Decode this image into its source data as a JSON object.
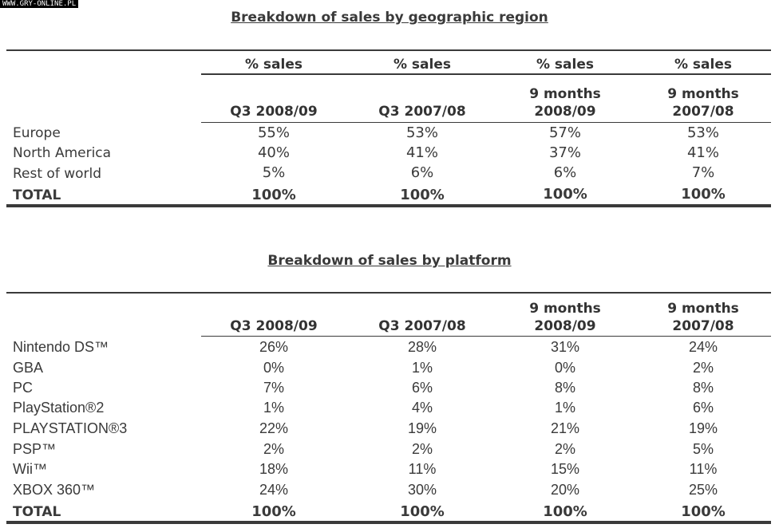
{
  "watermark": "WWW.GRY-ONLINE.PL",
  "region_table": {
    "title": "Breakdown of sales by geographic region",
    "pct_headers": [
      "% sales",
      "% sales",
      "% sales",
      "% sales"
    ],
    "period_headers": [
      [
        "Q3 2008/09"
      ],
      [
        "Q3 2007/08"
      ],
      [
        "9 months",
        "2008/09"
      ],
      [
        "9 months",
        "2007/08"
      ]
    ],
    "rows": [
      {
        "label": "Europe",
        "values": [
          "55%",
          "53%",
          "57%",
          "53%"
        ]
      },
      {
        "label": "North America",
        "values": [
          "40%",
          "41%",
          "37%",
          "41%"
        ]
      },
      {
        "label": "Rest of world",
        "values": [
          "5%",
          "6%",
          "6%",
          "7%"
        ]
      }
    ],
    "total": {
      "label": "TOTAL",
      "values": [
        "100%",
        "100%",
        "100%",
        "100%"
      ]
    }
  },
  "platform_table": {
    "title": "Breakdown of sales by platform",
    "period_headers": [
      [
        "Q3 2008/09"
      ],
      [
        "Q3 2007/08"
      ],
      [
        "9 months",
        "2008/09"
      ],
      [
        "9 months",
        "2007/08"
      ]
    ],
    "rows": [
      {
        "label": "Nintendo DS™",
        "values": [
          "26%",
          "28%",
          "31%",
          "24%"
        ]
      },
      {
        "label": "GBA",
        "values": [
          "0%",
          "1%",
          "0%",
          "2%"
        ]
      },
      {
        "label": "PC",
        "values": [
          "7%",
          "6%",
          "8%",
          "8%"
        ]
      },
      {
        "label": "PlayStation®2",
        "values": [
          "1%",
          "4%",
          "1%",
          "6%"
        ]
      },
      {
        "label": "PLAYSTATION®3",
        "values": [
          "22%",
          "19%",
          "21%",
          "19%"
        ]
      },
      {
        "label": "PSP™",
        "values": [
          "2%",
          "2%",
          "2%",
          "5%"
        ]
      },
      {
        "label": "Wii™",
        "values": [
          "18%",
          "11%",
          "15%",
          "11%"
        ]
      },
      {
        "label": "XBOX 360™",
        "values": [
          "24%",
          "30%",
          "20%",
          "25%"
        ]
      }
    ],
    "total": {
      "label": "TOTAL",
      "values": [
        "100%",
        "100%",
        "100%",
        "100%"
      ]
    }
  }
}
